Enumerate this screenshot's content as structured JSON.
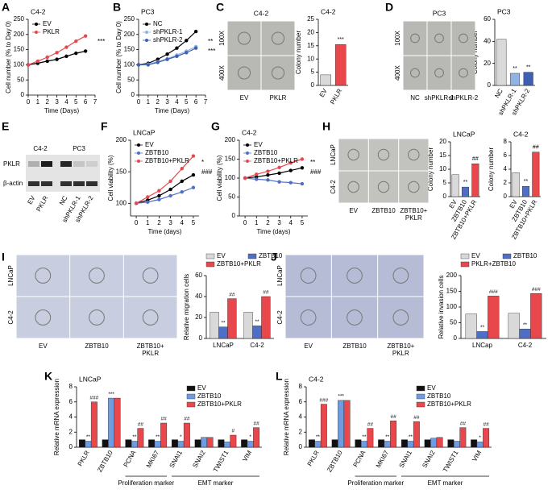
{
  "chart_data": [
    {
      "panel": "A",
      "type": "line",
      "title": "C4-2",
      "x_label": "Time (Days)",
      "y_label": "Cell number (% to Day 0)",
      "x": [
        0,
        1,
        2,
        3,
        4,
        5,
        6
      ],
      "xlim": [
        0,
        7
      ],
      "xticks": [
        0,
        1,
        2,
        3,
        4,
        5,
        6,
        7
      ],
      "ylim": [
        0,
        250
      ],
      "yticks": [
        0,
        50,
        100,
        150,
        200,
        250
      ],
      "series": [
        {
          "name": "EV",
          "color": "#000000",
          "values": [
            100,
            105,
            112,
            118,
            128,
            138,
            145
          ]
        },
        {
          "name": "PKLR",
          "color": "#e8474b",
          "values": [
            100,
            112,
            125,
            140,
            158,
            178,
            195
          ]
        }
      ],
      "annotations": [
        "***"
      ]
    },
    {
      "panel": "B",
      "type": "line",
      "title": "PC3",
      "x_label": "Time (Days)",
      "y_label": "Cell number (% to Day 0)",
      "x": [
        0,
        1,
        2,
        3,
        4,
        5,
        6
      ],
      "xlim": [
        0,
        7
      ],
      "xticks": [
        0,
        1,
        2,
        3,
        4,
        5,
        6,
        7
      ],
      "ylim": [
        0,
        250
      ],
      "yticks": [
        0,
        50,
        100,
        150,
        200,
        250
      ],
      "series": [
        {
          "name": "NC",
          "color": "#000000",
          "values": [
            100,
            105,
            118,
            135,
            155,
            180,
            210
          ]
        },
        {
          "name": "shPKLR-1",
          "color": "#8fb4e3",
          "values": [
            100,
            102,
            110,
            120,
            132,
            145,
            160
          ]
        },
        {
          "name": "shPKLR-2",
          "color": "#3f5fb0",
          "values": [
            100,
            100,
            108,
            118,
            128,
            140,
            155
          ]
        }
      ],
      "annotations": [
        "**",
        "***"
      ]
    },
    {
      "type": "bar",
      "title": "C4-2",
      "y_label": "Colony number",
      "categories": [
        "EV",
        "PKLR"
      ],
      "values": [
        4,
        15.5
      ],
      "colors": [
        "#d9d9d9",
        "#e8474b"
      ],
      "annotations": [
        null,
        "***"
      ],
      "ylim": [
        0,
        25
      ],
      "yticks": [
        0,
        5,
        10,
        15,
        20,
        25
      ]
    },
    {
      "type": "bar",
      "title": "PC3",
      "y_label": "Colony number",
      "categories": [
        "NC",
        "shPKLR-1",
        "shPKLR-2"
      ],
      "values": [
        42,
        11,
        12
      ],
      "colors": [
        "#d9d9d9",
        "#8fb4e3",
        "#3f5fb0"
      ],
      "annotations": [
        null,
        "**",
        "**"
      ],
      "ylim": [
        0,
        60
      ],
      "yticks": [
        0,
        20,
        40,
        60
      ]
    },
    {
      "panel": "F",
      "type": "line",
      "title": "LNCaP",
      "x_label": "Time (days)",
      "y_label": "Cell viability (%)",
      "x": [
        0,
        1,
        2,
        3,
        4,
        5
      ],
      "xlim": [
        -0.5,
        5.5
      ],
      "xticks": [
        0,
        1,
        2,
        3,
        4,
        5
      ],
      "ylim": [
        80,
        200
      ],
      "yticks": [
        100,
        150,
        200
      ],
      "series": [
        {
          "name": "EV",
          "color": "#000000",
          "values": [
            100,
            105,
            112,
            122,
            135,
            145
          ]
        },
        {
          "name": "ZBTB10",
          "color": "#4f6fc6",
          "values": [
            100,
            102,
            106,
            112,
            118,
            125
          ]
        },
        {
          "name": "ZBTB10+PKLR",
          "color": "#e8474b",
          "values": [
            100,
            110,
            120,
            135,
            155,
            175
          ]
        }
      ],
      "annotations": [
        "*",
        "###"
      ]
    },
    {
      "panel": "G",
      "type": "line",
      "title": "C4-2",
      "x_label": "Time (days)",
      "y_label": "Cell viability (%)",
      "x": [
        0,
        1,
        2,
        3,
        4,
        5
      ],
      "xlim": [
        -0.5,
        5.5
      ],
      "xticks": [
        0,
        1,
        2,
        3,
        4,
        5
      ],
      "ylim": [
        0,
        200
      ],
      "yticks": [
        0,
        50,
        100,
        150,
        200
      ],
      "series": [
        {
          "name": "EV",
          "color": "#000000",
          "values": [
            100,
            103,
            108,
            113,
            120,
            127
          ]
        },
        {
          "name": "ZBTB10",
          "color": "#4f6fc6",
          "values": [
            100,
            97,
            95,
            90,
            88,
            85
          ]
        },
        {
          "name": "ZBTB10+PKLR",
          "color": "#e8474b",
          "values": [
            100,
            110,
            118,
            128,
            140,
            150
          ]
        }
      ],
      "annotations": [
        "**",
        "###"
      ]
    },
    {
      "type": "bar",
      "title": "LNCaP",
      "y_label": "Colony number",
      "categories": [
        "EV",
        "ZBTB10",
        "ZBTB10+PKLR"
      ],
      "values": [
        8,
        3.5,
        12
      ],
      "colors": [
        "#d9d9d9",
        "#4f6fc6",
        "#e8474b"
      ],
      "annotations": [
        null,
        "**",
        "##"
      ],
      "ylim": [
        0,
        20
      ],
      "yticks": [
        0,
        5,
        10,
        15,
        20
      ]
    },
    {
      "type": "bar",
      "title": "C4-2",
      "y_label": "Colony number",
      "categories": [
        "EV",
        "ZBTB10",
        "ZBTB10+PKLR"
      ],
      "values": [
        3.5,
        1.5,
        6.5
      ],
      "colors": [
        "#d9d9d9",
        "#4f6fc6",
        "#e8474b"
      ],
      "annotations": [
        null,
        "**",
        "##"
      ],
      "ylim": [
        0,
        8
      ],
      "yticks": [
        0,
        2,
        4,
        6,
        8
      ]
    },
    {
      "type": "bar",
      "y_label": "Relative migration cells",
      "categories": [
        "LNCaP",
        "C4-2"
      ],
      "ylim": [
        0,
        60
      ],
      "yticks": [
        0,
        20,
        40,
        60
      ],
      "series": [
        {
          "name": "EV",
          "color": "#d9d9d9",
          "values": [
            25,
            25
          ]
        },
        {
          "name": "ZBTB10",
          "color": "#4f6fc6",
          "values": [
            11,
            12
          ],
          "annotations": [
            "**",
            "**"
          ]
        },
        {
          "name": "ZBTB10+PKLR",
          "color": "#e8474b",
          "values": [
            38,
            40
          ],
          "annotations": [
            "##",
            "##"
          ]
        }
      ]
    },
    {
      "type": "bar",
      "y_label": "Relative invasion cells",
      "categories": [
        "LNCap",
        "C4-2"
      ],
      "ylim": [
        0,
        200
      ],
      "yticks": [
        0,
        50,
        100,
        150,
        200
      ],
      "series": [
        {
          "name": "EV",
          "color": "#d9d9d9",
          "values": [
            78,
            80
          ]
        },
        {
          "name": "ZBTB10",
          "color": "#4f6fc6",
          "values": [
            22,
            30
          ],
          "annotations": [
            "**",
            "**"
          ]
        },
        {
          "name": "PKLR+ZBTB10",
          "color": "#e8474b",
          "values": [
            135,
            143
          ],
          "annotations": [
            "###",
            "###"
          ]
        }
      ]
    },
    {
      "panel": "K",
      "type": "bar",
      "title": "LNCaP",
      "y_label": "Relative mRNA expression",
      "categories": [
        "PKLR",
        "ZBTB10",
        "PCNA",
        "MKI67",
        "SNAI1",
        "SNAI2",
        "TWIST1",
        "VIM"
      ],
      "ylim": [
        0,
        8
      ],
      "yticks": [
        0,
        2,
        4,
        6,
        8
      ],
      "series": [
        {
          "name": "EV",
          "color": "#111111",
          "values": [
            1,
            1,
            1,
            1,
            1,
            1,
            1,
            1
          ]
        },
        {
          "name": "ZBTB10",
          "color": "#6f9be0",
          "values": [
            0.8,
            6.5,
            0.8,
            0.8,
            0.8,
            1.3,
            0.7,
            0.8
          ],
          "annotations": [
            "**",
            "***",
            "**",
            "**",
            "*",
            null,
            null,
            "*"
          ]
        },
        {
          "name": "ZBTB10+PKLR",
          "color": "#e8474b",
          "values": [
            6,
            6.5,
            2.5,
            3.2,
            3.2,
            1.3,
            1.6,
            2.6
          ],
          "annotations": [
            "###",
            null,
            "##",
            "##",
            "##",
            null,
            "#",
            "##"
          ]
        }
      ],
      "group_labels": [
        "Proliferation marker",
        "EMT marker"
      ]
    },
    {
      "panel": "L",
      "type": "bar",
      "title": "C4-2",
      "y_label": "Relative mRNA expression",
      "categories": [
        "PKLR",
        "ZBTB10",
        "PCNA",
        "MKI67",
        "SNAI1",
        "SNAI2",
        "TWIST1",
        "VIM"
      ],
      "ylim": [
        0,
        8
      ],
      "yticks": [
        0,
        2,
        4,
        6,
        8
      ],
      "series": [
        {
          "name": "EV",
          "color": "#111111",
          "values": [
            1,
            1,
            1,
            1,
            1,
            1,
            1,
            1
          ]
        },
        {
          "name": "ZBTB10",
          "color": "#6f9be0",
          "values": [
            0.8,
            6.2,
            0.8,
            0.8,
            0.8,
            1.2,
            0.8,
            0.7
          ],
          "annotations": [
            "**",
            "***",
            "**",
            "**",
            "**",
            null,
            null,
            "*"
          ]
        },
        {
          "name": "ZBTB10+PKLR",
          "color": "#e8474b",
          "values": [
            5.7,
            6.2,
            2.5,
            3.5,
            3.4,
            1.3,
            2.6,
            2.5
          ],
          "annotations": [
            "###",
            null,
            "##",
            "##",
            "##",
            null,
            "##",
            "##"
          ]
        }
      ],
      "group_labels": [
        "Proliferation marker",
        "EMT marker"
      ]
    }
  ],
  "image_panels": [
    {
      "panel": "C",
      "title": "C4-2",
      "rows": [
        "100X",
        "400X"
      ],
      "cols": [
        [
          "EV"
        ],
        [
          "PKLR"
        ]
      ]
    },
    {
      "panel": "D",
      "title": "PC3",
      "rows": [
        "100X",
        "400X"
      ],
      "cols": [
        [
          "NC"
        ],
        [
          "shPKLR-1"
        ],
        [
          "shPKLR-2"
        ]
      ]
    },
    {
      "panel": "H",
      "rows": [
        "LNCaP",
        "C4-2"
      ],
      "cols": [
        [
          "EV"
        ],
        [
          "ZBTB10"
        ],
        [
          "ZBTB10+",
          "PKLR"
        ]
      ]
    },
    {
      "panel": "I",
      "rows": [
        "LNCaP",
        "C4-2"
      ],
      "cols": [
        [
          "EV"
        ],
        [
          "ZBTB10"
        ],
        [
          "ZBTB10+",
          "PKLR"
        ]
      ]
    },
    {
      "panel": "J",
      "rows": [
        "LNCaP",
        "C4-2"
      ],
      "cols": [
        [
          "EV"
        ],
        [
          "ZBTB10"
        ],
        [
          "ZBTB10+",
          "PKLR"
        ]
      ]
    }
  ],
  "blot": {
    "panel": "E",
    "groups": [
      "C4-2",
      "PC3"
    ],
    "rows": [
      "PKLR",
      "β-actin"
    ],
    "lanes": [
      "EV",
      "PKLR",
      "NC",
      "shPKLR-1",
      "shPKLR-2"
    ]
  }
}
